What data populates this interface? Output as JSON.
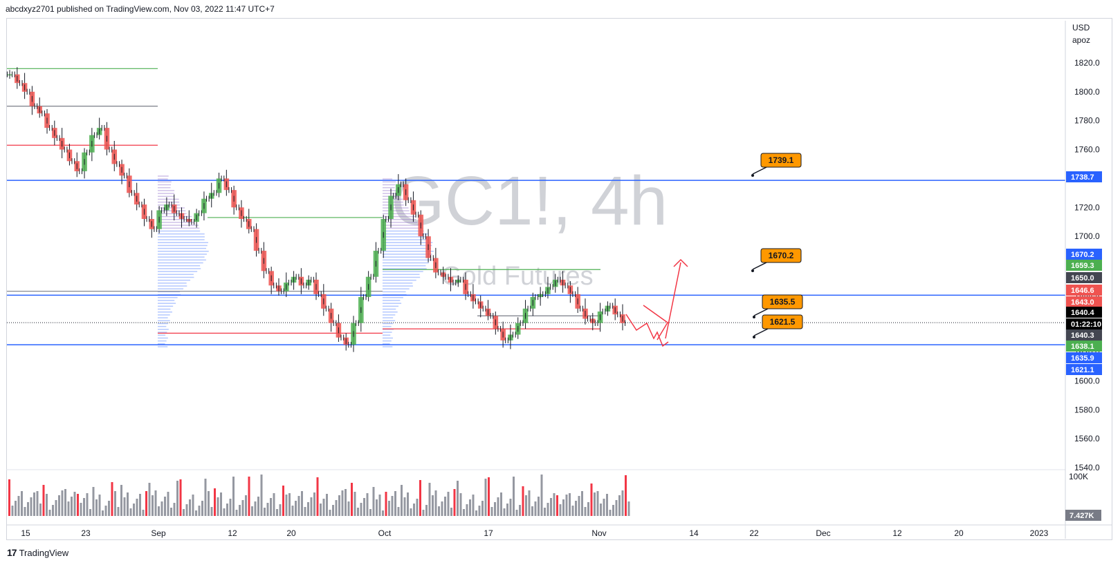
{
  "header": {
    "text": "abcdxyz2701 published on TradingView.com, Nov 03, 2022 11:47 UTC+7"
  },
  "footer": {
    "logo_glyph": "17",
    "brand": "TradingView"
  },
  "watermark": {
    "symbol": "GC1!, 4h",
    "name": "Gold Futures"
  },
  "colors": {
    "up": "#4caf50",
    "down": "#ef5350",
    "level_blue": "#2962ff",
    "callout": "#ff9800",
    "volume_up": "#9598a1",
    "volume_down": "#f23645"
  },
  "chart_data": {
    "type": "candlestick",
    "symbol": "GC1!",
    "timeframe": "4h",
    "currency": "USD",
    "unit_label": "apoz",
    "ylim": [
      1530,
      1830
    ],
    "y_ticks": [
      1820.0,
      1800.0,
      1780.0,
      1760.0,
      1740.0,
      1720.0,
      1700.0,
      1680.0,
      1660.0,
      1640.0,
      1620.0,
      1600.0,
      1580.0,
      1560.0,
      1540.0
    ],
    "x_ticks": [
      "15",
      "23",
      "Sep",
      "12",
      "20",
      "Oct",
      "17",
      "Nov",
      "14",
      "22",
      "Dec",
      "12",
      "20",
      "2023"
    ],
    "close_path": [
      1812,
      1806,
      1800,
      1790,
      1785,
      1775,
      1768,
      1760,
      1752,
      1745,
      1758,
      1770,
      1775,
      1760,
      1750,
      1742,
      1730,
      1722,
      1712,
      1705,
      1718,
      1722,
      1716,
      1712,
      1710,
      1716,
      1726,
      1730,
      1740,
      1732,
      1720,
      1712,
      1705,
      1690,
      1676,
      1666,
      1662,
      1668,
      1672,
      1666,
      1670,
      1660,
      1650,
      1640,
      1630,
      1625,
      1640,
      1658,
      1672,
      1690,
      1712,
      1728,
      1736,
      1725,
      1715,
      1700,
      1685,
      1675,
      1672,
      1668,
      1670,
      1660,
      1655,
      1650,
      1645,
      1636,
      1628,
      1632,
      1640,
      1650,
      1658,
      1660,
      1665,
      1670,
      1666,
      1660,
      1650,
      1643,
      1640,
      1648,
      1652,
      1646,
      1640
    ],
    "horizontal_levels": [
      1738.7,
      1659.3,
      1640.3,
      1625.0
    ],
    "callouts": [
      {
        "label": "1739.1",
        "value": 1739.1
      },
      {
        "label": "1670.2",
        "value": 1670.2
      },
      {
        "label": "1635.5",
        "value": 1635.5
      },
      {
        "label": "1621.5",
        "value": 1621.5
      }
    ],
    "price_tags": [
      {
        "label": "1738.7",
        "value": 1738.7,
        "color": "#2962ff"
      },
      {
        "label": "1670.2",
        "value": 1670.2,
        "color": "#2962ff"
      },
      {
        "label": "1659.3",
        "value": 1659.3,
        "color": "#4caf50"
      },
      {
        "label": "1650.0",
        "value": 1650.0,
        "color": "#434651"
      },
      {
        "label": "1646.6",
        "value": 1646.6,
        "color": "#ef5350"
      },
      {
        "label": "1643.0",
        "value": 1643.0,
        "color": "#ef5350"
      },
      {
        "label": "1640.4",
        "value": 1640.4,
        "color": "#000000"
      },
      {
        "label": "01:22:10",
        "value": 1640.4,
        "color": "#000000"
      },
      {
        "label": "1640.3",
        "value": 1640.3,
        "color": "#434651"
      },
      {
        "label": "1638.1",
        "value": 1638.1,
        "color": "#4caf50"
      },
      {
        "label": "1635.9",
        "value": 1635.9,
        "color": "#2962ff"
      },
      {
        "label": "1621.1",
        "value": 1621.1,
        "color": "#2962ff"
      }
    ],
    "volume": {
      "max_label": "100K",
      "last_label": "7.427K"
    },
    "grid": true
  }
}
